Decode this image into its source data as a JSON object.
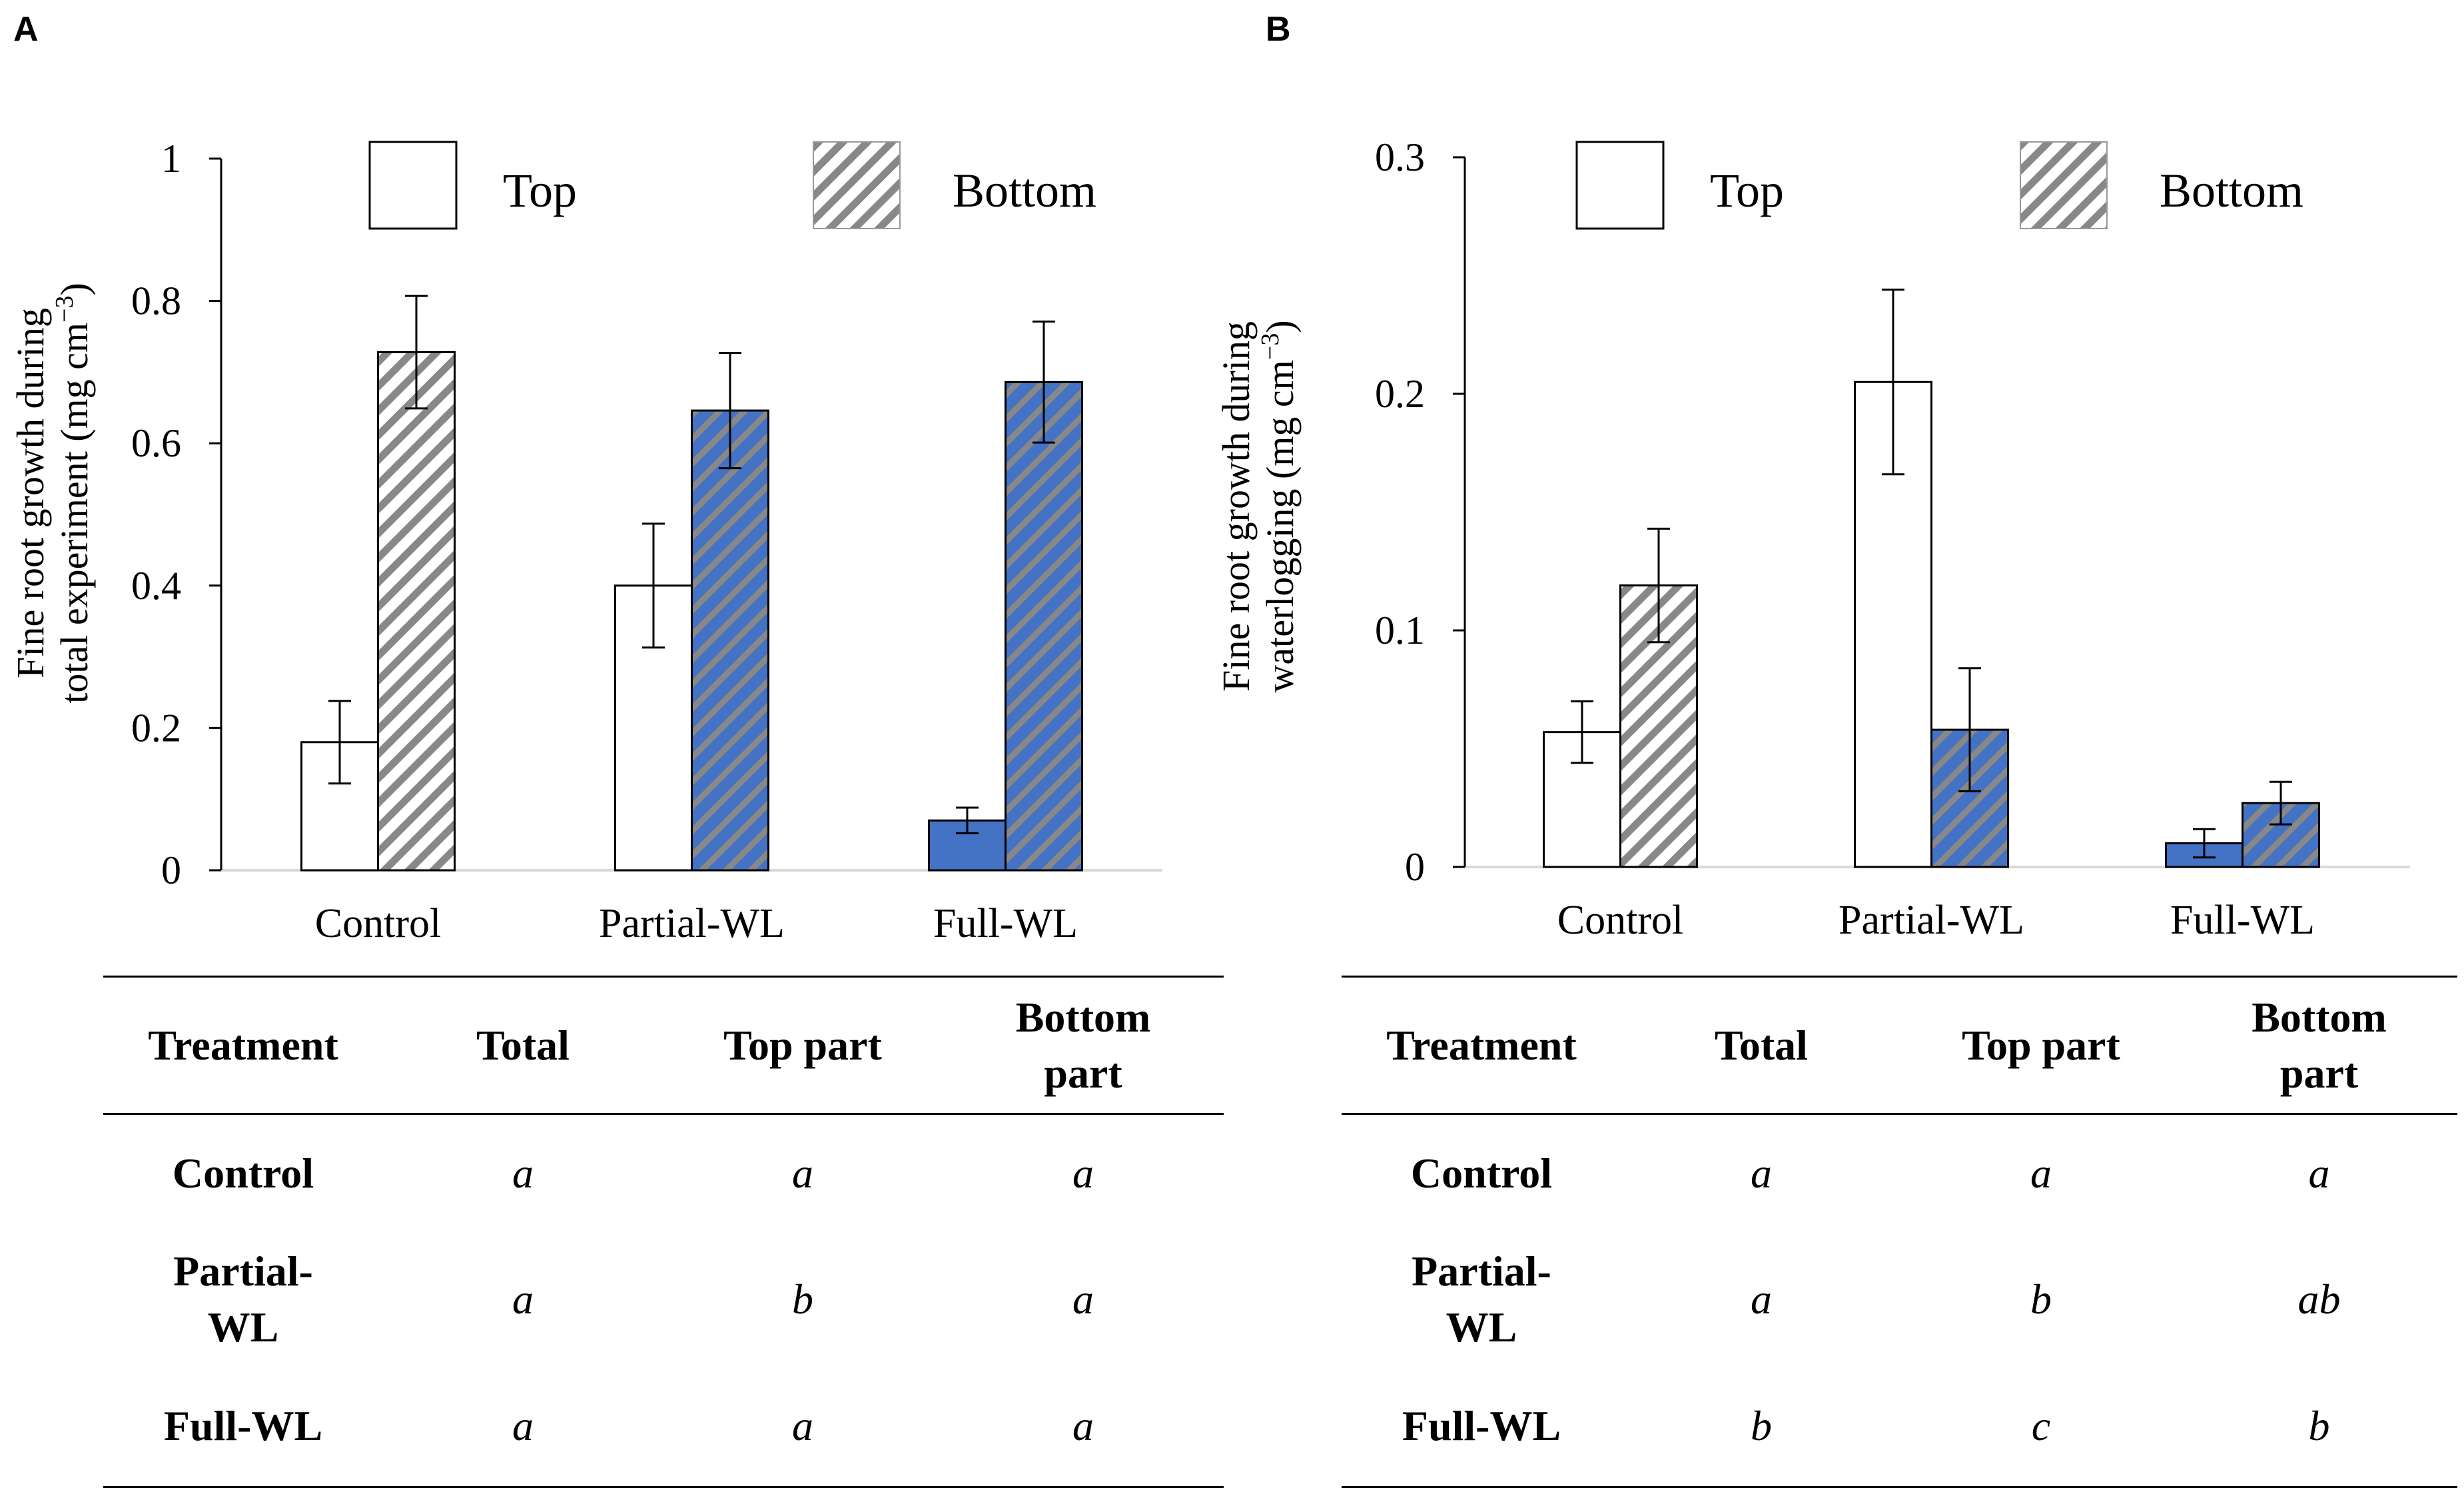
{
  "chart_data": [
    {
      "type": "bar",
      "panel": "A",
      "ylabel_line1": "Fine root growth during",
      "ylabel_line2": "total experiment (mg cm",
      "ylabel_sup": "−3",
      "ylabel_close": ")",
      "ylim": [
        0,
        1
      ],
      "yticks": [
        0,
        0.2,
        0.4,
        0.6,
        0.8,
        1
      ],
      "ytick_labels": [
        "0",
        "0.2",
        "0.4",
        "0.6",
        "0.8",
        "1"
      ],
      "categories": [
        "Control",
        "Partial-WL",
        "Full-WL"
      ],
      "legend": [
        "Top",
        "Bottom"
      ],
      "series": [
        {
          "name": "Top",
          "values": [
            0.18,
            0.4,
            0.07
          ],
          "errors": [
            0.058,
            0.087,
            0.018
          ]
        },
        {
          "name": "Bottom",
          "values": [
            0.728,
            0.646,
            0.686
          ],
          "errors": [
            0.079,
            0.081,
            0.085
          ]
        }
      ]
    },
    {
      "type": "bar",
      "panel": "B",
      "ylabel_line1": "Fine root growth during",
      "ylabel_line2": "waterlogging (mg cm",
      "ylabel_sup": "−3",
      "ylabel_close": ")",
      "ylim": [
        0,
        0.3
      ],
      "yticks": [
        0,
        0.1,
        0.2,
        0.3
      ],
      "ytick_labels": [
        "0",
        "0.1",
        "0.2",
        "0.3"
      ],
      "categories": [
        "Control",
        "Partial-WL",
        "Full-WL"
      ],
      "legend": [
        "Top",
        "Bottom"
      ],
      "series": [
        {
          "name": "Top",
          "values": [
            0.057,
            0.205,
            0.01
          ],
          "errors": [
            0.013,
            0.039,
            0.006
          ]
        },
        {
          "name": "Bottom",
          "values": [
            0.119,
            0.058,
            0.027
          ],
          "errors": [
            0.024,
            0.026,
            0.009
          ]
        }
      ]
    }
  ],
  "colors": {
    "waterlogged_fill": "#4472c4",
    "stripe": "#888888",
    "axis": "#000000",
    "baseline": "#d9d9d9"
  },
  "tables": [
    {
      "panel": "A",
      "headers": [
        "Treatment",
        "Total",
        "Top part",
        "Bottom part"
      ],
      "header_bottom_line1": "Bottom",
      "header_bottom_line2": "part",
      "rows": [
        {
          "treatment": "Control",
          "treatment_l1": "Control",
          "treatment_l2": "",
          "total": "a",
          "top": "a",
          "bottom": "a"
        },
        {
          "treatment": "Partial-WL",
          "treatment_l1": "Partial-",
          "treatment_l2": "WL",
          "total": "a",
          "top": "b",
          "bottom": "a"
        },
        {
          "treatment": "Full-WL",
          "treatment_l1": "Full-WL",
          "treatment_l2": "",
          "total": "a",
          "top": "a",
          "bottom": "a"
        }
      ]
    },
    {
      "panel": "B",
      "headers": [
        "Treatment",
        "Total",
        "Top part",
        "Bottom part"
      ],
      "header_bottom_line1": "Bottom",
      "header_bottom_line2": "part",
      "rows": [
        {
          "treatment": "Control",
          "treatment_l1": "Control",
          "treatment_l2": "",
          "total": "a",
          "top": "a",
          "bottom": "a"
        },
        {
          "treatment": "Partial-WL",
          "treatment_l1": "Partial-",
          "treatment_l2": "WL",
          "total": "a",
          "top": "b",
          "bottom": "ab"
        },
        {
          "treatment": "Full-WL",
          "treatment_l1": "Full-WL",
          "treatment_l2": "",
          "total": "b",
          "top": "c",
          "bottom": "b"
        }
      ]
    }
  ]
}
